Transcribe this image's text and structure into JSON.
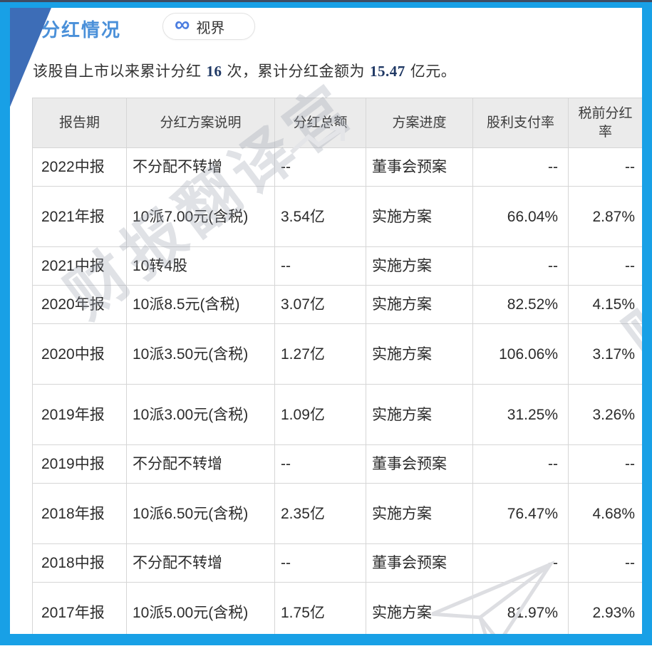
{
  "header": {
    "title": "分红情况",
    "badge": {
      "icon": "infinity-icon",
      "icon_glyph": "∞",
      "label": "视界"
    }
  },
  "summary": {
    "prefix": "该股自上市以来累计分红",
    "count": "16",
    "middle": "次，累计分红金额为",
    "amount": "15.47",
    "suffix": "亿元。"
  },
  "table": {
    "columns": [
      "报告期",
      "分红方案说明",
      "分红总额",
      "方案进度",
      "股利支付率",
      "税前分红率"
    ],
    "rows": [
      [
        "2022中报",
        "不分配不转增",
        "--",
        "董事会预案",
        "--",
        "--"
      ],
      [
        "2021年报",
        "10派7.00元(含税)",
        "3.54亿",
        "实施方案",
        "66.04%",
        "2.87%"
      ],
      [
        "2021中报",
        "10转4股",
        "--",
        "实施方案",
        "--",
        "--"
      ],
      [
        "2020年报",
        "10派8.5元(含税)",
        "3.07亿",
        "实施方案",
        "82.52%",
        "4.15%"
      ],
      [
        "2020中报",
        "10派3.50元(含税)",
        "1.27亿",
        "实施方案",
        "106.06%",
        "3.17%"
      ],
      [
        "2019年报",
        "10派3.00元(含税)",
        "1.09亿",
        "实施方案",
        "31.25%",
        "3.26%"
      ],
      [
        "2019中报",
        "不分配不转增",
        "--",
        "董事会预案",
        "--",
        "--"
      ],
      [
        "2018年报",
        "10派6.50元(含税)",
        "2.35亿",
        "实施方案",
        "76.47%",
        "4.68%"
      ],
      [
        "2018中报",
        "不分配不转增",
        "--",
        "董事会预案",
        "--",
        "--"
      ],
      [
        "2017年报",
        "10派5.00元(含税)",
        "1.75亿",
        "实施方案",
        "81.97%",
        "2.93%"
      ]
    ]
  },
  "watermark": {
    "text": "财报翻译官"
  },
  "colors": {
    "frame_blue": "#18a0e6",
    "corner_blue": "#3d6db7",
    "title_blue": "#4a90d9",
    "number_navy": "#1f3864",
    "logo_blue": "#4b7de0",
    "header_gray": "#ebebeb",
    "border_gray": "#d6d6d6"
  }
}
